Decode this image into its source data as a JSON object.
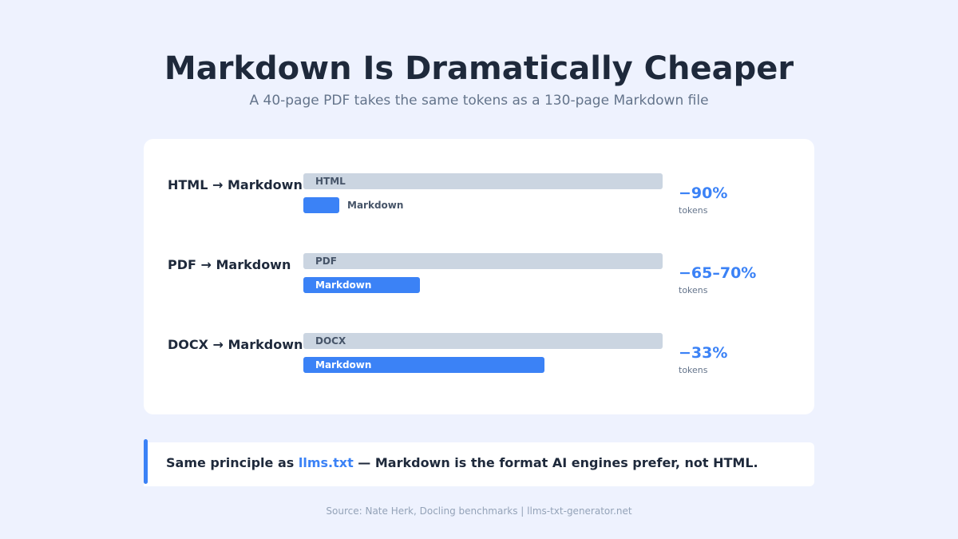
{
  "header": {
    "title": "Markdown Is Dramatically Cheaper",
    "subtitle": "A 40-page PDF takes the same tokens as a 130-page Markdown file"
  },
  "chart_data": {
    "type": "bar",
    "unit": "tokens",
    "categories": [
      "HTML → Markdown",
      "PDF → Markdown",
      "DOCX → Markdown"
    ],
    "series": [
      {
        "name": "Original",
        "labels": [
          "HTML",
          "PDF",
          "DOCX"
        ],
        "values": [
          100,
          100,
          100
        ]
      },
      {
        "name": "Markdown",
        "labels": [
          "Markdown",
          "Markdown",
          "Markdown"
        ],
        "values": [
          10,
          32.5,
          67
        ]
      }
    ],
    "reductions": [
      "−90%",
      "−65–70%",
      "−33%"
    ],
    "reduction_unit": "tokens",
    "colors": {
      "original": "#cbd5e1",
      "markdown": "#3b82f6",
      "accent": "#3b82f6"
    }
  },
  "callout": {
    "prefix": "Same principle as ",
    "link": "llms.txt",
    "suffix": " — Markdown is the format AI engines prefer, not HTML."
  },
  "footer": {
    "source": "Source: Nate Herk, Docling benchmarks | llms-txt-generator.net"
  }
}
